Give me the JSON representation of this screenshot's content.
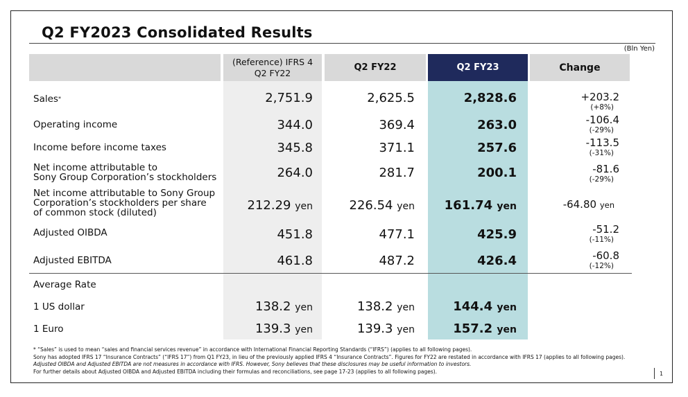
{
  "title": "Q2 FY2023  Consolidated Results",
  "unit": "(Bln Yen)",
  "headers": {
    "ref_line1": "(Reference) IFRS 4",
    "ref_line2": "Q2 FY22",
    "fy22": "Q2 FY22",
    "fy23": "Q2 FY23",
    "change": "Change"
  },
  "rows": [
    {
      "label": "Sales",
      "sup": "*",
      "ref": "2,751.9",
      "fy22": "2,625.5",
      "fy23": "2,828.6",
      "change": "+203.2",
      "pct": "(+8%)"
    },
    {
      "label": "Operating income",
      "ref": "344.0",
      "fy22": "369.4",
      "fy23": "263.0",
      "change": "-106.4",
      "pct": "(-29%)"
    },
    {
      "label": "Income before income taxes",
      "ref": "345.8",
      "fy22": "371.1",
      "fy23": "257.6",
      "change": "-113.5",
      "pct": "(-31%)"
    },
    {
      "label1": "Net income attributable to",
      "label2": "Sony Group Corporation’s stockholders",
      "ref": "264.0",
      "fy22": "281.7",
      "fy23": "200.1",
      "change": "-81.6",
      "pct": "(-29%)"
    },
    {
      "label1": "Net income attributable to Sony Group",
      "label2": "Corporation’s stockholders per share",
      "label3": "of common stock (diluted)",
      "ref": "212.29",
      "fy22": "226.54",
      "fy23": "161.74",
      "change": "-64.80",
      "yen": "yen"
    },
    {
      "label": "Adjusted OIBDA",
      "ref": "451.8",
      "fy22": "477.1",
      "fy23": "425.9",
      "change": "-51.2",
      "pct": "(-11%)"
    },
    {
      "label": "Adjusted EBITDA",
      "ref": "461.8",
      "fy22": "487.2",
      "fy23": "426.4",
      "change": "-60.8",
      "pct": "(-12%)"
    }
  ],
  "rates": {
    "heading": "Average Rate",
    "usd": {
      "label": "1 US dollar",
      "ref": "138.2",
      "fy22": "138.2",
      "fy23": "144.4"
    },
    "eur": {
      "label": "1 Euro",
      "ref": "139.3",
      "fy22": "139.3",
      "fy23": "157.2"
    },
    "yen": "yen"
  },
  "notes": {
    "n1": "* “Sales” is used to mean “sales and financial services revenue” in accordance with International Financial Reporting Standards (“IFRS”) (applies to all following pages).",
    "n2": "Sony has adopted IFRS 17 “Insurance Contracts” (“IFRS 17”) from Q1 FY23, in lieu of the previously applied IFRS 4 “Insurance Contracts”. Figures for FY22 are restated in accordance with IFRS 17 (applies to all following pages).",
    "n3": "Adjusted OIBDA and Adjusted EBITDA are not measures in accordance with IFRS. However, Sony believes that these disclosures may be useful information to investors.",
    "n4": "For further details about Adjusted OIBDA and Adjusted EBITDA including their formulas and reconciliations, see page 17-23 (applies to all following pages)."
  },
  "page_number": "1"
}
